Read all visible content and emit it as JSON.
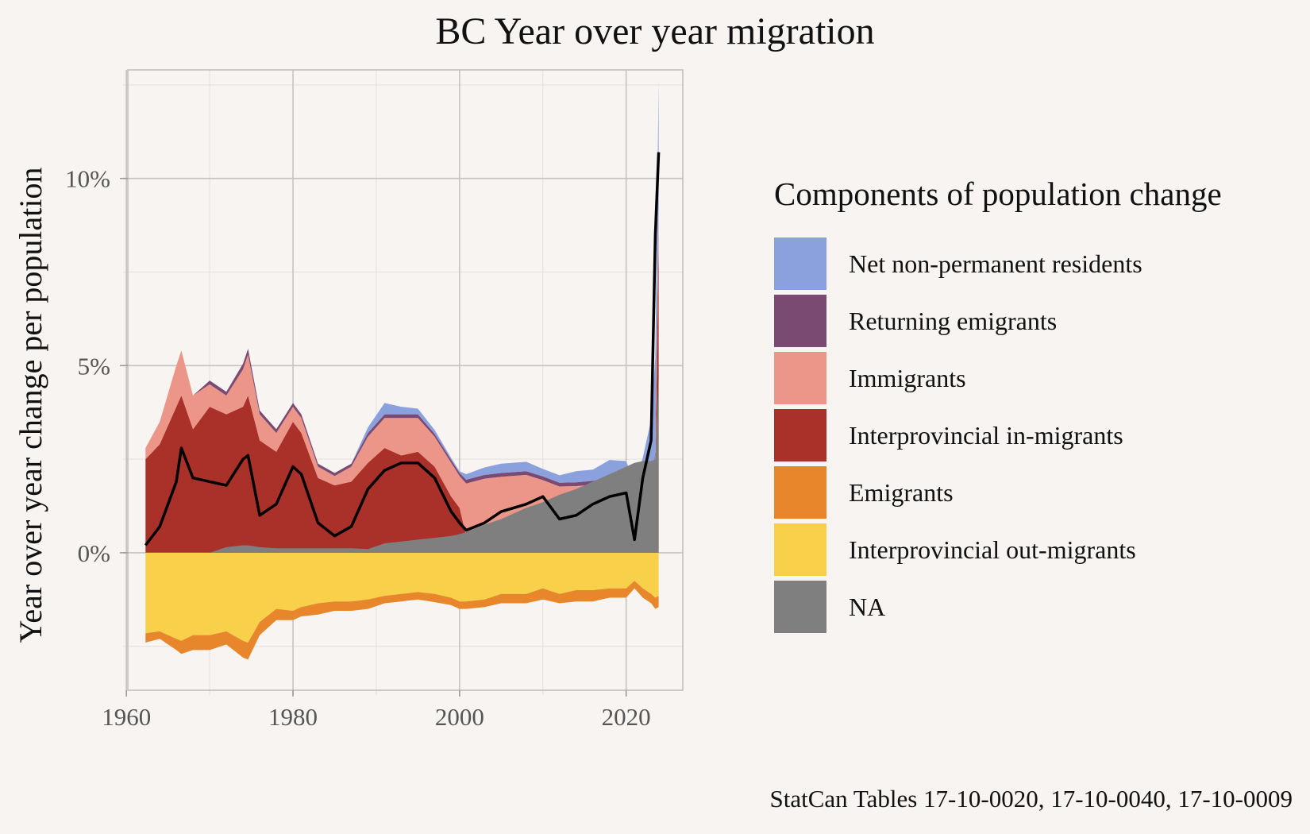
{
  "title": "BC Year over year migration",
  "caption": "StatCan Tables 17-10-0020, 17-10-0040, 17-10-0009",
  "colors": {
    "background": "#f7f4f1",
    "panel": "#f7f4f1",
    "grid_major": "#c4c4c4",
    "grid_minor": "#e4e1de",
    "net_line": "#000000"
  },
  "chart_data": {
    "type": "area",
    "title": "BC Year over year migration",
    "xlabel": "",
    "ylabel": "Year over year change per population",
    "xlim": [
      1959.6,
      2026.8
    ],
    "ylim": [
      -3.8,
      12.9
    ],
    "x_ticks": [
      {
        "value": 1960,
        "label": "1960"
      },
      {
        "value": 1980,
        "label": "1980"
      },
      {
        "value": 2000,
        "label": "2000"
      },
      {
        "value": 2020,
        "label": "2020"
      }
    ],
    "y_ticks": [
      {
        "value": 0,
        "label": "0%"
      },
      {
        "value": 5,
        "label": "5%"
      },
      {
        "value": 10,
        "label": "10%"
      }
    ],
    "grid": true,
    "legend": {
      "title": "Components of population change",
      "position": "right",
      "items": [
        {
          "name": "Net non-permanent residents",
          "color": "#8aa1dd"
        },
        {
          "name": "Returning emigrants",
          "color": "#7b4a72"
        },
        {
          "name": "Immigrants",
          "color": "#ec968a"
        },
        {
          "name": "Interprovincial in-migrants",
          "color": "#aa3129"
        },
        {
          "name": "Emigrants",
          "color": "#e8862b"
        },
        {
          "name": "Interprovincial out-migrants",
          "color": "#f8d04a"
        },
        {
          "name": "NA",
          "color": "#7f7f7f"
        }
      ]
    },
    "x": [
      1962.3,
      1964,
      1966,
      1966.6,
      1968,
      1970,
      1972,
      1974,
      1974.6,
      1976,
      1978,
      1980,
      1981,
      1983,
      1985,
      1987,
      1989,
      1991,
      1993,
      1995,
      1997,
      1999,
      2000,
      2000.8,
      2003,
      2005,
      2008,
      2010,
      2012,
      2014,
      2016,
      2018,
      2020,
      2021,
      2022,
      2023,
      2023.5,
      2023.9
    ],
    "series": [
      {
        "name": "Interprovincial in-migrants",
        "stack": "positive",
        "values": [
          2.5,
          2.9,
          3.9,
          4.2,
          3.3,
          3.9,
          3.7,
          3.9,
          4.2,
          3.0,
          2.7,
          3.5,
          3.2,
          2.0,
          1.8,
          1.9,
          2.4,
          2.8,
          2.6,
          2.7,
          2.3,
          1.5,
          1.2,
          0.45,
          0.38,
          0.33,
          0.28,
          0.24,
          0.22,
          0.18,
          0.12,
          0.08,
          0.05,
          0.04,
          0.04,
          0.05,
          2.0,
          8.5
        ]
      },
      {
        "name": "Immigrants",
        "stack": "positive",
        "values": [
          0.3,
          0.6,
          1.1,
          1.2,
          0.9,
          0.6,
          0.5,
          1.0,
          1.1,
          0.7,
          0.5,
          0.4,
          0.4,
          0.3,
          0.25,
          0.4,
          0.7,
          0.8,
          1.0,
          0.9,
          0.8,
          0.9,
          0.85,
          1.4,
          1.6,
          1.7,
          1.8,
          1.7,
          1.55,
          1.6,
          1.7,
          1.8,
          1.7,
          1.6,
          1.5,
          1.6,
          0.6,
          0.8
        ]
      },
      {
        "name": "Returning emigrants",
        "stack": "positive",
        "values": [
          0.0,
          0.0,
          0.0,
          0.0,
          0.0,
          0.1,
          0.1,
          0.15,
          0.15,
          0.1,
          0.1,
          0.1,
          0.1,
          0.08,
          0.08,
          0.08,
          0.1,
          0.1,
          0.1,
          0.1,
          0.08,
          0.08,
          0.08,
          0.1,
          0.1,
          0.1,
          0.1,
          0.1,
          0.1,
          0.1,
          0.1,
          0.1,
          0.1,
          0.1,
          0.1,
          0.1,
          0.1,
          0.1
        ]
      },
      {
        "name": "Net non-permanent residents",
        "stack": "positive",
        "values": [
          0.0,
          0.0,
          0.0,
          0.0,
          0.0,
          0.0,
          0.0,
          0.0,
          0.0,
          0.0,
          0.0,
          0.0,
          0.0,
          0.0,
          0.0,
          0.0,
          0.15,
          0.3,
          0.2,
          0.15,
          0.1,
          0.05,
          0.05,
          0.15,
          0.2,
          0.25,
          0.25,
          0.2,
          0.2,
          0.3,
          0.3,
          0.5,
          0.6,
          0.1,
          0.9,
          1.8,
          2.5,
          3.2
        ]
      },
      {
        "name": "Interprovincial out-migrants",
        "stack": "negative",
        "values": [
          -2.15,
          -2.1,
          -2.3,
          -2.35,
          -2.2,
          -2.2,
          -2.1,
          -2.35,
          -2.4,
          -1.85,
          -1.5,
          -1.55,
          -1.45,
          -1.35,
          -1.3,
          -1.3,
          -1.25,
          -1.15,
          -1.1,
          -1.05,
          -1.1,
          -1.2,
          -1.3,
          -1.3,
          -1.25,
          -1.1,
          -1.1,
          -0.95,
          -1.1,
          -1.0,
          -1.0,
          -0.95,
          -0.95,
          -0.75,
          -0.95,
          -1.1,
          -1.2,
          -1.15
        ]
      },
      {
        "name": "Emigrants",
        "stack": "negative",
        "values": [
          -0.25,
          -0.2,
          -0.3,
          -0.35,
          -0.4,
          -0.4,
          -0.35,
          -0.45,
          -0.45,
          -0.35,
          -0.3,
          -0.25,
          -0.25,
          -0.3,
          -0.25,
          -0.25,
          -0.25,
          -0.2,
          -0.2,
          -0.2,
          -0.22,
          -0.2,
          -0.2,
          -0.2,
          -0.2,
          -0.25,
          -0.25,
          -0.3,
          -0.25,
          -0.3,
          -0.3,
          -0.25,
          -0.25,
          -0.2,
          -0.25,
          -0.25,
          -0.3,
          -0.3
        ]
      },
      {
        "name": "NA",
        "stack": "positive_overlay",
        "values": [
          0.0,
          0.0,
          0.0,
          0.0,
          0.0,
          0.0,
          0.15,
          0.2,
          0.2,
          0.15,
          0.12,
          0.12,
          0.12,
          0.12,
          0.12,
          0.12,
          0.1,
          0.25,
          0.3,
          0.35,
          0.4,
          0.45,
          0.5,
          0.55,
          0.75,
          0.9,
          1.2,
          1.35,
          1.55,
          1.7,
          1.9,
          2.1,
          2.3,
          2.4,
          2.45,
          2.45,
          2.5,
          4.8
        ]
      },
      {
        "name": "Net migration",
        "stack": "line",
        "values": [
          0.2,
          0.7,
          1.9,
          2.8,
          2.0,
          1.9,
          1.8,
          2.5,
          2.6,
          1.0,
          1.3,
          2.3,
          2.1,
          0.8,
          0.45,
          0.7,
          1.7,
          2.2,
          2.4,
          2.4,
          2.0,
          1.1,
          0.8,
          0.6,
          0.8,
          1.1,
          1.3,
          1.5,
          0.9,
          1.0,
          1.3,
          1.5,
          1.6,
          0.35,
          2.0,
          3.0,
          8.5,
          10.7
        ]
      }
    ]
  }
}
